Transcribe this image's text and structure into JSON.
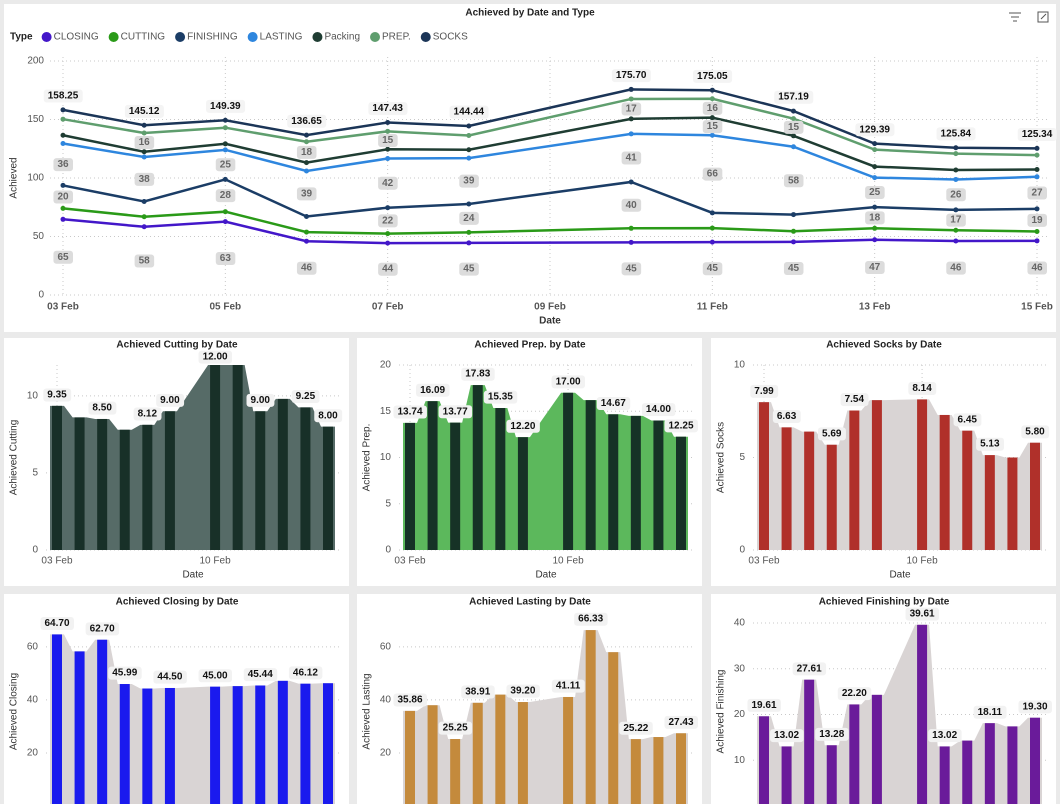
{
  "chart_data": [
    {
      "type": "stacked_line",
      "title": "Achieved by Date and Type",
      "legend_title": "Type",
      "x": [
        "03 Feb",
        "04 Feb",
        "05 Feb",
        "06 Feb",
        "07 Feb",
        "08 Feb",
        "10 Feb",
        "11 Feb",
        "12 Feb",
        "13 Feb",
        "14 Feb",
        "15 Feb"
      ],
      "xlim": [
        "03 Feb",
        "15 Feb"
      ],
      "xticks": [
        "03 Feb",
        "05 Feb",
        "07 Feb",
        "09 Feb",
        "11 Feb",
        "13 Feb",
        "15 Feb"
      ],
      "ylim": [
        0,
        200
      ],
      "yticks": [
        0,
        50,
        100,
        150,
        200
      ],
      "xlabel": "Date",
      "ylabel": "Achieved",
      "grid": true,
      "series": [
        {
          "name": "CLOSING",
          "color": "#4317c9",
          "values": [
            64.7,
            58.3,
            62.7,
            45.99,
            44.3,
            44.5,
            45.0,
            45.2,
            45.44,
            47.2,
            46.12,
            46.3
          ],
          "value_labels": [
            "65",
            "58",
            "63",
            "46",
            "44",
            "45",
            "45",
            "45",
            "45",
            "47",
            "46",
            "46"
          ]
        },
        {
          "name": "CUTTING",
          "color": "#2a9a18",
          "values": [
            9.35,
            8.6,
            8.5,
            7.8,
            8.12,
            9.0,
            12.0,
            12.0,
            9.0,
            9.8,
            9.25,
            8.0
          ],
          "value_labels": [
            null,
            null,
            null,
            null,
            null,
            null,
            null,
            null,
            null,
            null,
            null,
            null
          ]
        },
        {
          "name": "FINISHING",
          "color": "#1b3d66",
          "values": [
            19.61,
            13.02,
            27.61,
            13.28,
            22.2,
            24.3,
            39.61,
            13.02,
            14.3,
            18.11,
            17.4,
            19.3
          ],
          "value_labels": [
            "20",
            null,
            "28",
            null,
            "22",
            "24",
            "40",
            null,
            null,
            "18",
            "17",
            "19"
          ]
        },
        {
          "name": "LASTING",
          "color": "#2e86de",
          "values": [
            35.86,
            38.0,
            25.25,
            38.91,
            42.0,
            39.2,
            41.11,
            66.33,
            58.0,
            25.22,
            26.0,
            27.43
          ],
          "value_labels": [
            "36",
            "38",
            "25",
            "39",
            "42",
            "39",
            "41",
            "66",
            "58",
            "25",
            "26",
            "27"
          ]
        },
        {
          "name": "Packing",
          "color": "#1f3d33",
          "values": [
            7.0,
            4.48,
            5.16,
            7.15,
            7.92,
            7.14,
            12.84,
            15.0,
            9.33,
            9.43,
            8.07,
            6.26
          ],
          "value_labels": [
            null,
            null,
            null,
            null,
            null,
            null,
            null,
            "15",
            null,
            null,
            null,
            null
          ]
        },
        {
          "name": "PREP.",
          "color": "#5f9e6e",
          "values": [
            13.74,
            16.09,
            13.77,
            17.83,
            15.35,
            12.2,
            17.0,
            16.2,
            14.67,
            14.5,
            14.0,
            12.25
          ],
          "value_labels": [
            null,
            "16",
            null,
            "18",
            "15",
            null,
            "17",
            "16",
            "15",
            null,
            null,
            null
          ]
        },
        {
          "name": "SOCKS",
          "color": "#1b3557",
          "values": [
            7.99,
            6.63,
            6.4,
            5.69,
            7.54,
            8.1,
            8.14,
            7.3,
            6.45,
            5.13,
            5.0,
            5.8
          ],
          "value_labels": [
            null,
            null,
            null,
            null,
            null,
            null,
            null,
            null,
            null,
            null,
            null,
            null
          ]
        }
      ],
      "total_labels": [
        "158.25",
        "145.12",
        "149.39",
        "136.65",
        "147.43",
        "144.44",
        "175.70",
        "175.05",
        "157.19",
        "129.39",
        "125.84",
        "125.34"
      ]
    },
    {
      "type": "bar_area",
      "title": "Achieved Cutting by Date",
      "xlabel": "Date",
      "ylabel": "Achieved Cutting",
      "x": [
        "03 Feb",
        "04 Feb",
        "05 Feb",
        "06 Feb",
        "07 Feb",
        "08 Feb",
        "10 Feb",
        "11 Feb",
        "12 Feb",
        "13 Feb",
        "14 Feb",
        "15 Feb"
      ],
      "xlim": [
        "03 Feb",
        "15 Feb"
      ],
      "xticks": [
        "03 Feb",
        "10 Feb"
      ],
      "ylim": [
        0,
        12
      ],
      "yticks": [
        0,
        5,
        10
      ],
      "grid": true,
      "color": "#183028",
      "area_color": "#566b67",
      "values": [
        9.35,
        8.6,
        8.5,
        7.8,
        8.12,
        9.0,
        12.0,
        12.0,
        9.0,
        9.8,
        9.25,
        8.0
      ],
      "value_labels": [
        "9.35",
        null,
        "8.50",
        null,
        "8.12",
        "9.00",
        "12.00",
        null,
        "9.00",
        null,
        "9.25",
        "8.00"
      ]
    },
    {
      "type": "bar_area",
      "title": "Achieved Prep. by Date",
      "xlabel": "Date",
      "ylabel": "Achieved Prep.",
      "x": [
        "03 Feb",
        "04 Feb",
        "05 Feb",
        "06 Feb",
        "07 Feb",
        "08 Feb",
        "10 Feb",
        "11 Feb",
        "12 Feb",
        "13 Feb",
        "14 Feb",
        "15 Feb"
      ],
      "xlim": [
        "03 Feb",
        "15 Feb"
      ],
      "xticks": [
        "03 Feb",
        "10 Feb"
      ],
      "ylim": [
        0,
        20
      ],
      "yticks": [
        0,
        5,
        10,
        15,
        20
      ],
      "grid": true,
      "color": "#163226",
      "area_color": "#5cb85c",
      "values": [
        13.74,
        16.09,
        13.77,
        17.83,
        15.35,
        12.2,
        17.0,
        16.2,
        14.67,
        14.5,
        14.0,
        12.25
      ],
      "value_labels": [
        "13.74",
        "16.09",
        "13.77",
        "17.83",
        "15.35",
        "12.20",
        "17.00",
        null,
        "14.67",
        null,
        "14.00",
        "12.25"
      ]
    },
    {
      "type": "bar_area",
      "title": "Achieved Socks by Date",
      "xlabel": "Date",
      "ylabel": "Achieved Socks",
      "x": [
        "03 Feb",
        "04 Feb",
        "05 Feb",
        "06 Feb",
        "07 Feb",
        "08 Feb",
        "10 Feb",
        "11 Feb",
        "12 Feb",
        "13 Feb",
        "14 Feb",
        "15 Feb"
      ],
      "xlim": [
        "03 Feb",
        "15 Feb"
      ],
      "xticks": [
        "03 Feb",
        "10 Feb"
      ],
      "ylim": [
        0,
        10
      ],
      "yticks": [
        0,
        5,
        10
      ],
      "grid": true,
      "color": "#b0302a",
      "area_color": "#d9d4d4",
      "values": [
        7.99,
        6.63,
        6.4,
        5.69,
        7.54,
        8.1,
        8.14,
        7.3,
        6.45,
        5.13,
        5.0,
        5.8
      ],
      "value_labels": [
        "7.99",
        "6.63",
        null,
        "5.69",
        "7.54",
        null,
        "8.14",
        null,
        "6.45",
        "5.13",
        null,
        "5.80"
      ]
    },
    {
      "type": "bar_area",
      "title": "Achieved Closing by Date",
      "ylabel": "Achieved Closing",
      "x": [
        "03 Feb",
        "04 Feb",
        "05 Feb",
        "06 Feb",
        "07 Feb",
        "08 Feb",
        "10 Feb",
        "11 Feb",
        "12 Feb",
        "13 Feb",
        "14 Feb",
        "15 Feb"
      ],
      "xlim": [
        "03 Feb",
        "15 Feb"
      ],
      "ylim": [
        0,
        69
      ],
      "yticks": [
        20,
        40,
        60
      ],
      "grid": true,
      "color": "#1a1aee",
      "area_color": "#d9d4d4",
      "values": [
        64.7,
        58.3,
        62.7,
        45.99,
        44.3,
        44.5,
        45.0,
        45.2,
        45.44,
        47.2,
        46.12,
        46.3
      ],
      "value_labels": [
        "64.70",
        null,
        "62.70",
        "45.99",
        null,
        "44.50",
        "45.00",
        null,
        "45.44",
        null,
        "46.12",
        null
      ]
    },
    {
      "type": "bar_area",
      "title": "Achieved Lasting by Date",
      "ylabel": "Achieved Lasting",
      "x": [
        "03 Feb",
        "04 Feb",
        "05 Feb",
        "06 Feb",
        "07 Feb",
        "08 Feb",
        "10 Feb",
        "11 Feb",
        "12 Feb",
        "13 Feb",
        "14 Feb",
        "15 Feb"
      ],
      "xlim": [
        "03 Feb",
        "15 Feb"
      ],
      "ylim": [
        0,
        69
      ],
      "yticks": [
        20,
        40,
        60
      ],
      "grid": true,
      "color": "#c48a3c",
      "area_color": "#d9d4d4",
      "values": [
        35.86,
        38.0,
        25.25,
        38.91,
        42.0,
        39.2,
        41.11,
        66.33,
        58.0,
        25.22,
        26.0,
        27.43
      ],
      "value_labels": [
        "35.86",
        null,
        "25.25",
        "38.91",
        null,
        "39.20",
        "41.11",
        "66.33",
        null,
        "25.22",
        null,
        "27.43"
      ]
    },
    {
      "type": "bar_area",
      "title": "Achieved Finishing by Date",
      "ylabel": "Achieved Finishing",
      "x": [
        "03 Feb",
        "04 Feb",
        "05 Feb",
        "06 Feb",
        "07 Feb",
        "08 Feb",
        "10 Feb",
        "11 Feb",
        "12 Feb",
        "13 Feb",
        "14 Feb",
        "15 Feb"
      ],
      "xlim": [
        "03 Feb",
        "15 Feb"
      ],
      "ylim": [
        0,
        40
      ],
      "yticks": [
        10,
        20,
        30,
        40
      ],
      "grid": true,
      "color": "#6a1b9a",
      "area_color": "#d9d4d4",
      "values": [
        19.61,
        13.02,
        27.61,
        13.28,
        22.2,
        24.3,
        39.61,
        13.02,
        14.3,
        18.11,
        17.4,
        19.3
      ],
      "value_labels": [
        "19.61",
        "13.02",
        "27.61",
        "13.28",
        "22.20",
        null,
        "39.61",
        "13.02",
        null,
        "18.11",
        null,
        "19.30"
      ]
    }
  ]
}
